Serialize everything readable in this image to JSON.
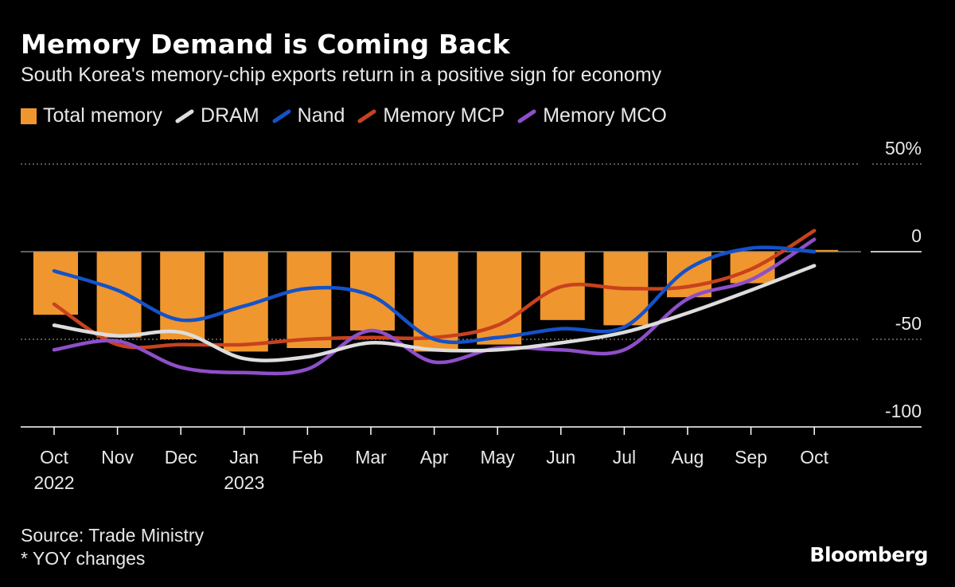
{
  "header": {
    "title": "Memory Demand is Coming Back",
    "subtitle": "South Korea's memory-chip exports return in a positive sign for economy"
  },
  "footer": {
    "source": "Source: Trade Ministry",
    "note": "* YOY changes",
    "brand": "Bloomberg"
  },
  "colors": {
    "background": "#000000",
    "total_memory": "#F0962E",
    "dram": "#DDDDDD",
    "nand": "#1452C8",
    "memory_mcp": "#C8421E",
    "memory_mco": "#8E4FC8",
    "gridline": "#8A8A8A"
  },
  "chart_data": {
    "type": "bar",
    "categories": [
      "Oct",
      "Nov",
      "Dec",
      "Jan",
      "Feb",
      "Mar",
      "Apr",
      "May",
      "Jun",
      "Jul",
      "Aug",
      "Sep",
      "Oct"
    ],
    "year_labels": [
      "2022",
      "",
      "",
      "2023",
      "",
      "",
      "",
      "",
      "",
      "",
      "",
      "",
      ""
    ],
    "ylim": [
      -100,
      50
    ],
    "yticks": [
      50,
      0,
      -50,
      -100
    ],
    "ytick_labels": [
      "50%",
      "0",
      "-50",
      "-100"
    ],
    "grid": true,
    "legend_position": "top",
    "bar_series": {
      "name": "Total memory",
      "values": [
        -36,
        -49,
        -50,
        -57,
        -55,
        -45,
        -57,
        -53,
        -39,
        -42,
        -26,
        -18,
        1
      ]
    },
    "series": [
      {
        "name": "DRAM",
        "type": "line",
        "values": [
          -42,
          -48,
          -46,
          -61,
          -60,
          -52,
          -56,
          -56,
          -52,
          -46,
          -35,
          -22,
          -8
        ]
      },
      {
        "name": "Nand",
        "type": "line",
        "values": [
          -11,
          -22,
          -39,
          -31,
          -21,
          -25,
          -50,
          -49,
          -44,
          -43,
          -10,
          2,
          0
        ]
      },
      {
        "name": "Memory MCP",
        "type": "line",
        "values": [
          -30,
          -53,
          -53,
          -53,
          -50,
          -49,
          -49,
          -42,
          -20,
          -21,
          -20,
          -10,
          12
        ]
      },
      {
        "name": "Memory MCO",
        "type": "line",
        "values": [
          -56,
          -51,
          -66,
          -69,
          -67,
          -45,
          -63,
          -55,
          -56,
          -56,
          -27,
          -16,
          7
        ]
      }
    ]
  }
}
